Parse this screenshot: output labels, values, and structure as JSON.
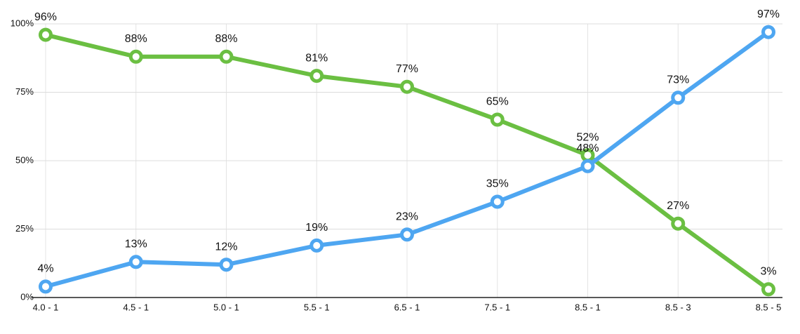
{
  "chart_data": {
    "type": "line",
    "categories": [
      "4.0 - 1",
      "4.5 - 1",
      "5.0 - 1",
      "5.5 - 1",
      "6.5 - 1",
      "7.5 - 1",
      "8.5 - 1",
      "8.5 - 3",
      "8.5 - 5"
    ],
    "series": [
      {
        "color": "#6bbf42",
        "values": [
          96,
          88,
          88,
          81,
          77,
          65,
          52,
          27,
          3
        ],
        "value_labels": [
          "96%",
          "88%",
          "88%",
          "81%",
          "77%",
          "65%",
          "52%",
          "27%",
          "3%"
        ]
      },
      {
        "color": "#4ea6f1",
        "values": [
          4,
          13,
          12,
          19,
          23,
          35,
          48,
          73,
          97
        ],
        "value_labels": [
          "4%",
          "13%",
          "12%",
          "19%",
          "23%",
          "35%",
          "48%",
          "73%",
          "97%"
        ]
      }
    ],
    "ylim": [
      0,
      100
    ],
    "yticks": [
      {
        "value": 0,
        "label": "0%"
      },
      {
        "value": 25,
        "label": "25%"
      },
      {
        "value": 50,
        "label": "50%"
      },
      {
        "value": 75,
        "label": "75%"
      },
      {
        "value": 100,
        "label": "100%"
      }
    ],
    "grid": true
  }
}
